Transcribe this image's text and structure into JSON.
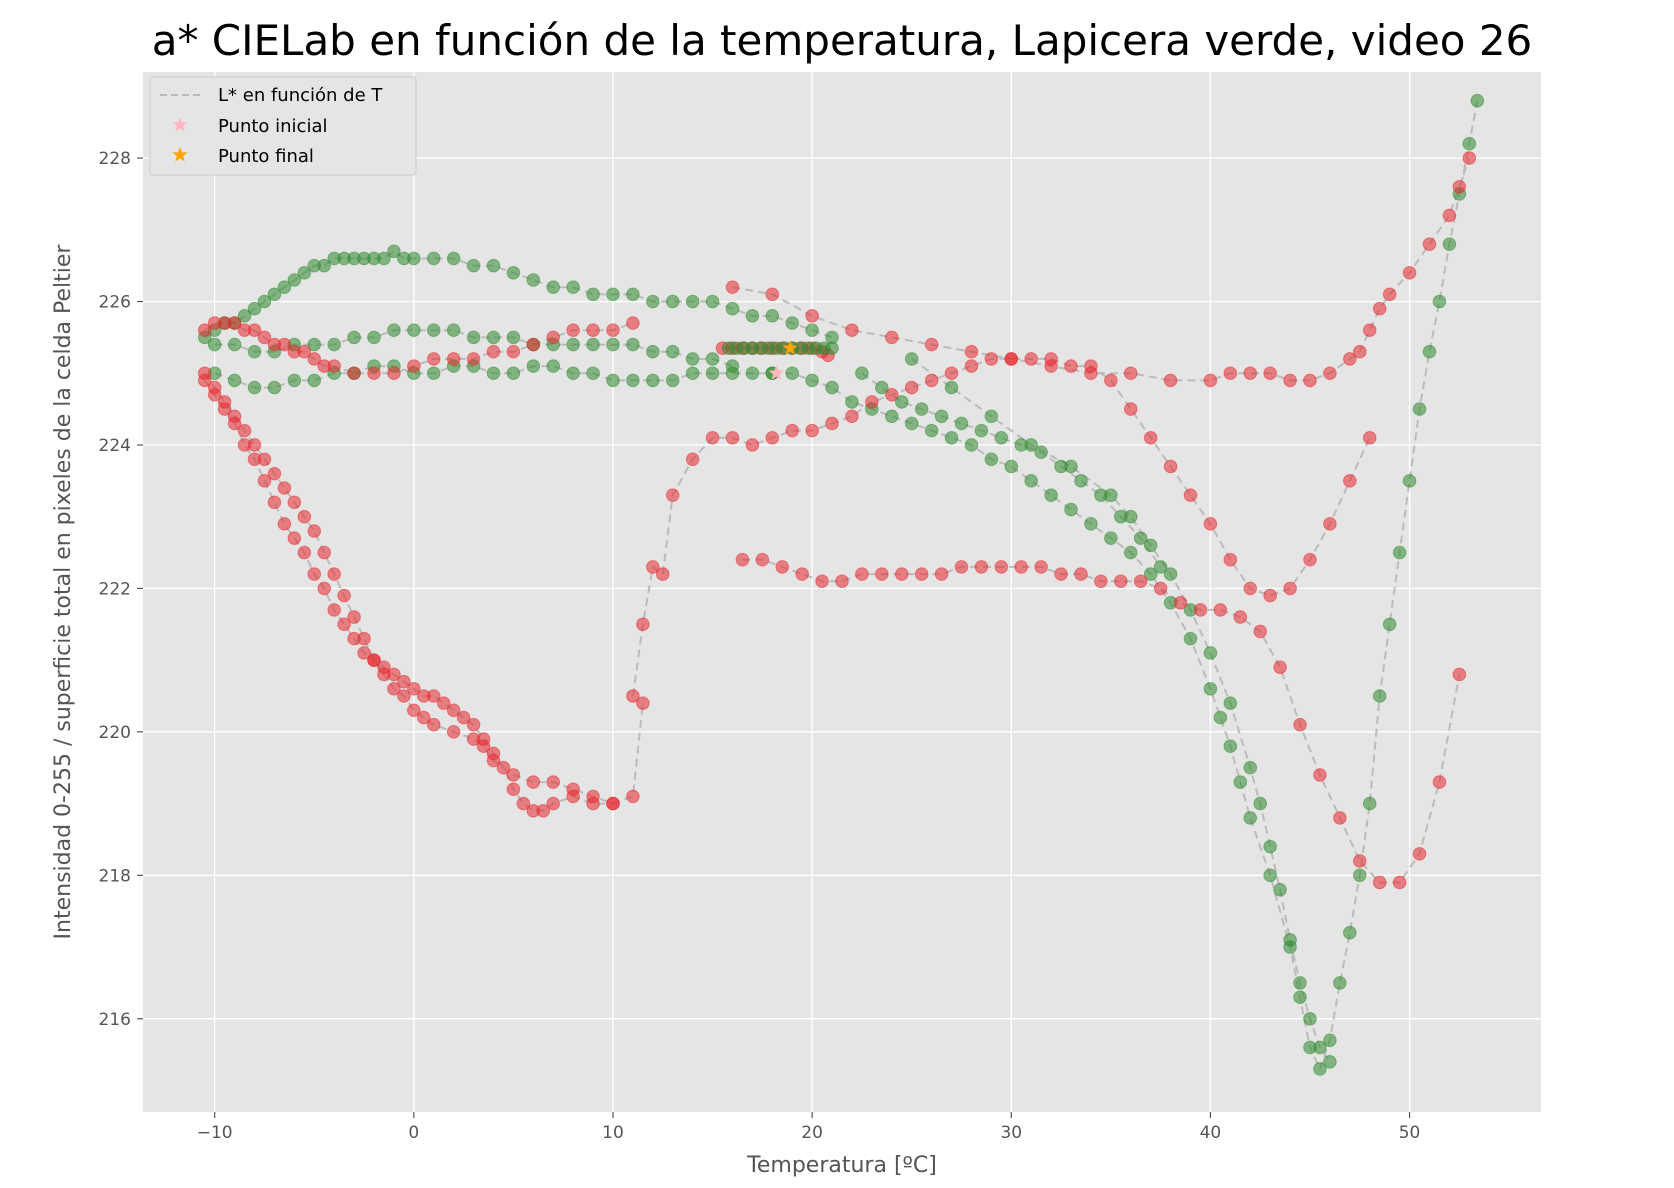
{
  "chart_data": {
    "type": "scatter",
    "title": "a* CIELab en función de la temperatura, Lapicera verde, video 26",
    "xlabel": "Temperatura [ºC]",
    "ylabel": "Intensidad 0-255 / superficie total en pixeles de la celda Peltier",
    "xlim": [
      -13.6,
      56.6
    ],
    "ylim": [
      214.7,
      229.2
    ],
    "xticks": [
      -10,
      0,
      10,
      20,
      30,
      40,
      50
    ],
    "yticks": [
      216,
      218,
      220,
      222,
      224,
      226,
      228
    ],
    "grid": true,
    "legend_position": "top-left",
    "colors": {
      "background": "#e5e5e5",
      "grid": "#ffffff",
      "line": "#bbbbbb",
      "red": "#e8282d",
      "green": "#2e8b2e",
      "start": "#ffb6c1",
      "end": "#ffa500"
    },
    "legend": [
      {
        "label": "L* en función de T",
        "kind": "line"
      },
      {
        "label": "Punto inicial",
        "kind": "star-pink"
      },
      {
        "label": "Punto final",
        "kind": "star-orange"
      }
    ],
    "series": [
      {
        "marker": "green",
        "x": [
          18.0,
          19.0,
          20.0,
          21.0,
          22.0,
          23.0,
          24.0,
          25.0,
          26.0,
          27.0,
          28.0,
          29.0,
          30.0,
          31.0,
          32.0,
          33.0,
          34.0,
          35.0,
          36.0,
          37.0,
          38.0,
          39.0,
          40.0,
          40.5,
          41.0,
          41.5,
          42.0,
          43.0,
          44.0,
          44.5,
          45.0,
          45.5,
          46.0,
          46.5,
          47.0,
          47.5,
          48.0,
          48.5,
          49.0,
          49.5,
          50.0,
          50.5,
          51.0,
          51.5,
          52.0,
          52.5,
          53.0,
          53.4
        ],
        "y": [
          225.0,
          225.0,
          224.9,
          224.8,
          224.6,
          224.5,
          224.4,
          224.3,
          224.2,
          224.1,
          224.0,
          223.8,
          223.7,
          223.5,
          223.3,
          223.1,
          222.9,
          222.7,
          222.5,
          222.2,
          221.8,
          221.3,
          220.6,
          220.2,
          219.8,
          219.3,
          218.8,
          218.0,
          217.0,
          216.3,
          215.6,
          215.3,
          215.7,
          216.5,
          217.2,
          218.0,
          219.0,
          220.5,
          221.5,
          222.5,
          223.5,
          224.5,
          225.3,
          226.0,
          226.8,
          227.5,
          228.2,
          228.8
        ]
      },
      {
        "marker": "red",
        "x": [
          16.0,
          18.0,
          20.0,
          22.0,
          24.0,
          26.0,
          28.0,
          30.0,
          32.0,
          34.0,
          36.0,
          38.0,
          40.0,
          41.0,
          42.0,
          43.0,
          44.0,
          45.0,
          46.0,
          47.0,
          47.5,
          48.0,
          48.5,
          49.0,
          50.0,
          51.0,
          52.0,
          52.5,
          53.0
        ],
        "y": [
          226.2,
          226.1,
          225.8,
          225.6,
          225.5,
          225.4,
          225.3,
          225.2,
          225.1,
          225.0,
          225.0,
          224.9,
          224.9,
          225.0,
          225.0,
          225.0,
          224.9,
          224.9,
          225.0,
          225.2,
          225.3,
          225.6,
          225.9,
          226.1,
          226.4,
          226.8,
          227.2,
          227.6,
          228.0
        ]
      },
      {
        "marker": "green",
        "x": [
          25.0,
          27.0,
          29.0,
          31.0,
          33.0,
          35.0,
          36.0,
          37.0,
          38.0,
          39.0,
          40.0,
          41.0,
          42.0,
          42.5,
          43.0,
          43.5,
          44.0,
          44.5,
          45.0,
          45.5,
          46.0
        ],
        "y": [
          225.2,
          224.8,
          224.4,
          224.0,
          223.7,
          223.3,
          223.0,
          222.6,
          222.2,
          221.7,
          221.1,
          220.4,
          219.5,
          219.0,
          218.4,
          217.8,
          217.1,
          216.5,
          216.0,
          215.6,
          215.4
        ]
      },
      {
        "marker": "red",
        "x": [
          16.5,
          17.5,
          18.5,
          19.5,
          20.5,
          21.5,
          22.5,
          23.5,
          24.5,
          25.5,
          26.5,
          27.5,
          28.5,
          29.5,
          30.5,
          31.5,
          32.5,
          33.5,
          34.5,
          35.5,
          36.5,
          37.5,
          38.5,
          39.5,
          40.5,
          41.5,
          42.5,
          43.5,
          44.5,
          45.5,
          46.5,
          47.5,
          48.5,
          49.5,
          50.5,
          51.5,
          52.5
        ],
        "y": [
          222.4,
          222.4,
          222.3,
          222.2,
          222.1,
          222.1,
          222.2,
          222.2,
          222.2,
          222.2,
          222.2,
          222.3,
          222.3,
          222.3,
          222.3,
          222.3,
          222.2,
          222.2,
          222.1,
          222.1,
          222.1,
          222.0,
          221.8,
          221.7,
          221.7,
          221.6,
          221.4,
          220.9,
          220.1,
          219.4,
          218.8,
          218.2,
          217.9,
          217.9,
          218.3,
          219.3,
          220.8
        ]
      },
      {
        "marker": "red",
        "x": [
          11.0,
          11.5,
          12.0,
          12.5,
          13.0,
          14.0,
          15.0,
          16.0,
          17.0,
          18.0,
          19.0,
          20.0,
          21.0,
          22.0,
          23.0,
          24.0,
          25.0,
          26.0,
          27.0,
          28.0,
          29.0,
          30.0,
          31.0,
          32.0,
          33.0,
          34.0,
          35.0,
          36.0,
          37.0,
          38.0,
          39.0,
          40.0,
          41.0,
          42.0,
          43.0,
          44.0,
          45.0,
          46.0,
          47.0,
          48.0
        ],
        "y": [
          220.5,
          221.5,
          222.3,
          222.2,
          223.3,
          223.8,
          224.1,
          224.1,
          224.0,
          224.1,
          224.2,
          224.2,
          224.3,
          224.4,
          224.6,
          224.7,
          224.8,
          224.9,
          225.0,
          225.1,
          225.2,
          225.2,
          225.2,
          225.2,
          225.1,
          225.1,
          224.9,
          224.5,
          224.1,
          223.7,
          223.3,
          222.9,
          222.4,
          222.0,
          221.9,
          222.0,
          222.4,
          222.9,
          223.5,
          224.1
        ]
      },
      {
        "marker": "green",
        "x": [
          -10.5,
          -10.0,
          -9.5,
          -9.0,
          -8.5,
          -8.0,
          -7.5,
          -7.0,
          -6.5,
          -6.0,
          -5.5,
          -5.0,
          -4.5,
          -4.0,
          -3.5,
          -3.0,
          -2.5,
          -2.0,
          -1.5,
          -1.0,
          -0.5,
          0.0,
          1.0,
          2.0,
          3.0,
          4.0,
          5.0,
          6.0,
          7.0,
          8.0,
          9.0,
          10.0,
          11.0,
          12.0,
          13.0,
          14.0,
          15.0,
          16.0,
          17.0,
          18.0,
          19.0,
          20.0,
          21.0
        ],
        "y": [
          225.5,
          225.6,
          225.7,
          225.7,
          225.8,
          225.9,
          226.0,
          226.1,
          226.2,
          226.3,
          226.4,
          226.5,
          226.5,
          226.6,
          226.6,
          226.6,
          226.6,
          226.6,
          226.6,
          226.7,
          226.6,
          226.6,
          226.6,
          226.6,
          226.5,
          226.5,
          226.4,
          226.3,
          226.2,
          226.2,
          226.1,
          226.1,
          226.1,
          226.0,
          226.0,
          226.0,
          226.0,
          225.9,
          225.8,
          225.8,
          225.7,
          225.6,
          225.5
        ]
      },
      {
        "marker": "green",
        "x": [
          -10.0,
          -9.0,
          -8.0,
          -7.0,
          -6.0,
          -5.0,
          -4.0,
          -3.0,
          -2.0,
          -1.0,
          0.0,
          1.0,
          2.0,
          3.0,
          4.0,
          5.0,
          6.0,
          7.0,
          8.0,
          9.0,
          10.0,
          11.0,
          12.0,
          13.0,
          14.0,
          15.0,
          16.0
        ],
        "y": [
          225.4,
          225.4,
          225.3,
          225.3,
          225.4,
          225.4,
          225.4,
          225.5,
          225.5,
          225.6,
          225.6,
          225.6,
          225.6,
          225.5,
          225.5,
          225.5,
          225.4,
          225.4,
          225.4,
          225.4,
          225.4,
          225.4,
          225.3,
          225.3,
          225.2,
          225.2,
          225.1
        ]
      },
      {
        "marker": "green",
        "x": [
          -10.0,
          -9.0,
          -8.0,
          -7.0,
          -6.0,
          -5.0,
          -4.0,
          -3.0,
          -2.0,
          -1.0,
          0.0,
          1.0,
          2.0,
          3.0,
          4.0,
          5.0,
          6.0,
          7.0,
          8.0,
          9.0,
          10.0,
          11.0,
          12.0,
          13.0,
          14.0,
          15.0,
          16.0,
          17.0,
          18.0
        ],
        "y": [
          225.0,
          224.9,
          224.8,
          224.8,
          224.9,
          224.9,
          225.0,
          225.0,
          225.1,
          225.1,
          225.0,
          225.0,
          225.1,
          225.1,
          225.0,
          225.0,
          225.1,
          225.1,
          225.0,
          225.0,
          224.9,
          224.9,
          224.9,
          224.9,
          225.0,
          225.0,
          225.0,
          225.0,
          225.0
        ]
      },
      {
        "marker": "red",
        "x": [
          -10.5,
          -10.0,
          -9.5,
          -9.0,
          -8.5,
          -8.0,
          -7.5,
          -7.0,
          -6.5,
          -6.0,
          -5.5,
          -5.0,
          -4.5,
          -4.0,
          -3.0,
          -2.0,
          -1.0,
          0.0,
          1.0,
          2.0,
          3.0,
          4.0,
          5.0,
          6.0,
          7.0,
          8.0,
          9.0,
          10.0,
          11.0
        ],
        "y": [
          225.6,
          225.7,
          225.7,
          225.7,
          225.6,
          225.6,
          225.5,
          225.4,
          225.4,
          225.3,
          225.3,
          225.2,
          225.1,
          225.1,
          225.0,
          225.0,
          225.0,
          225.1,
          225.2,
          225.2,
          225.2,
          225.3,
          225.3,
          225.4,
          225.5,
          225.6,
          225.6,
          225.6,
          225.7
        ]
      },
      {
        "marker": "red",
        "x": [
          -10.5,
          -10.0,
          -9.5,
          -9.0,
          -8.5,
          -8.0,
          -7.5,
          -7.0,
          -6.5,
          -6.0,
          -5.5,
          -5.0,
          -4.5,
          -4.0,
          -3.5,
          -3.0,
          -2.5,
          -2.0,
          -1.5,
          -1.0,
          -0.5,
          0.0,
          0.5,
          1.0,
          2.0,
          3.0,
          3.5,
          4.0,
          5.0,
          6.0,
          7.0,
          8.0,
          9.0,
          10.0,
          11.0,
          11.5
        ],
        "y": [
          225.0,
          224.8,
          224.6,
          224.4,
          224.2,
          224.0,
          223.8,
          223.6,
          223.4,
          223.2,
          223.0,
          222.8,
          222.5,
          222.2,
          221.9,
          221.6,
          221.3,
          221.0,
          220.8,
          220.6,
          220.5,
          220.3,
          220.2,
          220.1,
          220.0,
          219.9,
          219.8,
          219.6,
          219.4,
          219.3,
          219.3,
          219.2,
          219.1,
          219.0,
          219.1,
          220.4
        ]
      },
      {
        "marker": "red",
        "x": [
          -10.5,
          -10.0,
          -9.5,
          -9.0,
          -8.5,
          -8.0,
          -7.5,
          -7.0,
          -6.5,
          -6.0,
          -5.5,
          -5.0,
          -4.5,
          -4.0,
          -3.5,
          -3.0,
          -2.5,
          -2.0,
          -1.5,
          -1.0,
          -0.5,
          0.0,
          0.5,
          1.0,
          1.5,
          2.0,
          2.5,
          3.0,
          3.5,
          4.0,
          4.5,
          5.0,
          5.5,
          6.0,
          6.5,
          7.0,
          8.0,
          9.0,
          10.0
        ],
        "y": [
          224.9,
          224.7,
          224.5,
          224.3,
          224.0,
          223.8,
          223.5,
          223.2,
          222.9,
          222.7,
          222.5,
          222.2,
          222.0,
          221.7,
          221.5,
          221.3,
          221.1,
          221.0,
          220.9,
          220.8,
          220.7,
          220.6,
          220.5,
          220.5,
          220.4,
          220.3,
          220.2,
          220.1,
          219.9,
          219.7,
          219.5,
          219.2,
          219.0,
          218.9,
          218.9,
          219.0,
          219.1,
          219.0,
          219.0
        ]
      },
      {
        "marker": "green",
        "x": [
          22.5,
          23.5,
          24.5,
          25.5,
          26.5,
          27.5,
          28.5,
          29.5,
          30.5,
          31.5,
          32.5,
          33.5,
          34.5,
          35.5,
          36.5,
          37.5
        ],
        "y": [
          225.0,
          224.8,
          224.6,
          224.5,
          224.4,
          224.3,
          224.2,
          224.1,
          224.0,
          223.9,
          223.7,
          223.5,
          223.3,
          223.0,
          222.7,
          222.3
        ]
      },
      {
        "marker": "red",
        "x": [
          15.5,
          16.0,
          16.5,
          17.0,
          17.5,
          18.0,
          18.5,
          19.0,
          19.5,
          20.0,
          20.5,
          20.8
        ],
        "y": [
          225.35,
          225.35,
          225.35,
          225.35,
          225.35,
          225.35,
          225.35,
          225.35,
          225.35,
          225.35,
          225.3,
          225.25
        ]
      },
      {
        "marker": "green",
        "x": [
          15.8,
          16.2,
          16.6,
          17.0,
          17.4,
          17.8,
          18.2,
          18.6,
          19.0,
          19.4,
          19.8,
          20.2,
          20.6,
          21.0
        ],
        "y": [
          225.35,
          225.35,
          225.35,
          225.35,
          225.35,
          225.35,
          225.35,
          225.35,
          225.35,
          225.35,
          225.35,
          225.35,
          225.35,
          225.35
        ]
      }
    ],
    "start_point": {
      "x": 18.2,
      "y": 225.0
    },
    "end_point": {
      "x": 18.9,
      "y": 225.35
    }
  }
}
